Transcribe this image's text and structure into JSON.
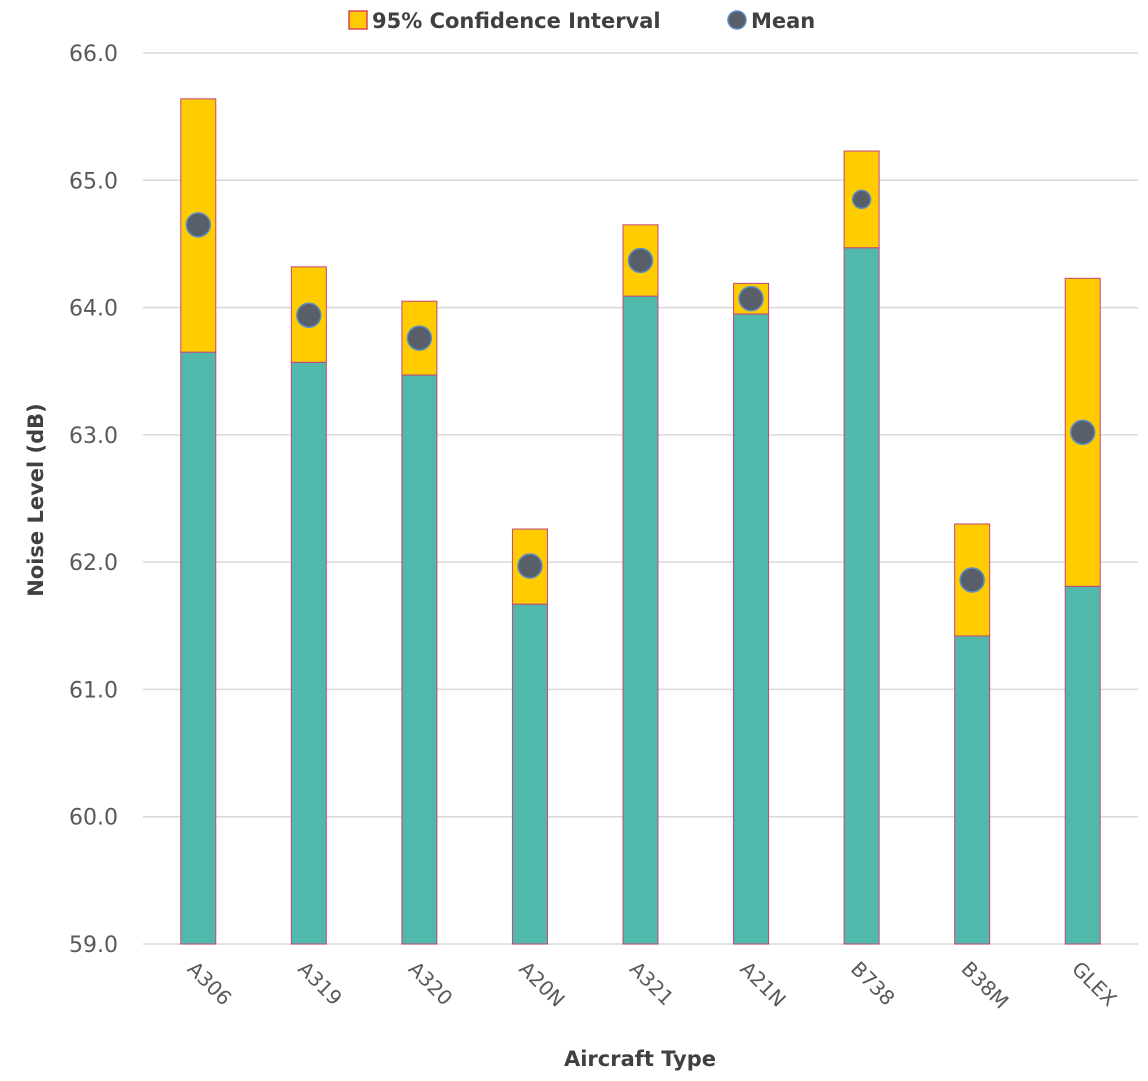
{
  "chart_data": {
    "type": "bar",
    "subtype": "stacked-bar with mean markers",
    "title": "",
    "xlabel": "Aircraft Type",
    "ylabel": "Noise Level (dB)",
    "ylim": [
      59.0,
      66.0
    ],
    "y_ticks": [
      "59.0",
      "60.0",
      "61.0",
      "62.0",
      "63.0",
      "64.0",
      "65.0",
      "66.0"
    ],
    "grid": true,
    "legend_position": "top",
    "legend": [
      {
        "label": "95% Confidence Interval",
        "kind": "square",
        "color": "#FFCC00",
        "stroke": "#E0405A"
      },
      {
        "label": "Mean",
        "kind": "circle",
        "color": "#595F68",
        "stroke": "#5B8DC8"
      }
    ],
    "categories": [
      "A306",
      "A319",
      "A320",
      "A20N",
      "A321",
      "A21N",
      "B738",
      "B38M",
      "GLEX"
    ],
    "series": [
      {
        "name": "95% Confidence Interval",
        "lower": [
          63.65,
          63.57,
          63.47,
          61.67,
          64.09,
          63.95,
          64.47,
          61.42,
          61.81
        ],
        "upper": [
          65.64,
          64.32,
          64.05,
          62.26,
          64.65,
          64.19,
          65.23,
          62.3,
          64.23
        ]
      },
      {
        "name": "Mean",
        "values": [
          64.65,
          63.94,
          63.76,
          61.97,
          64.37,
          64.07,
          64.85,
          61.86,
          63.02
        ]
      }
    ],
    "colors": {
      "base": "#50B9AC",
      "ci": "#FFCC00",
      "bar_outline": "#C2467A",
      "mean_fill": "#595F68",
      "mean_outline": "#5B8DC8"
    }
  }
}
